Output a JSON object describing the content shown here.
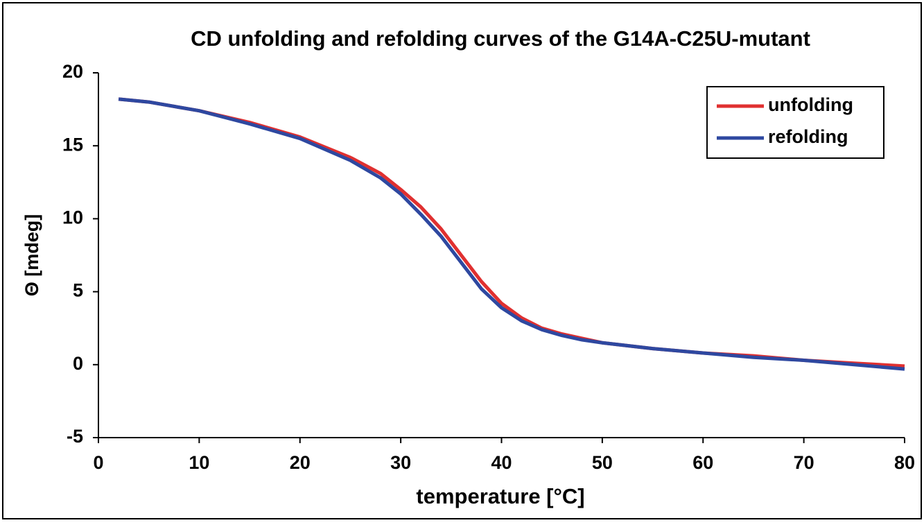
{
  "chart_data": {
    "type": "line",
    "title": "CD unfolding and refolding curves of the G14A-C25U-mutant",
    "x_label": "temperature [°C]",
    "y_label": "Θ [mdeg]",
    "x": [
      2,
      5,
      10,
      15,
      20,
      25,
      28,
      30,
      32,
      34,
      36,
      38,
      40,
      42,
      44,
      46,
      48,
      50,
      55,
      60,
      65,
      70,
      75,
      80
    ],
    "series": [
      {
        "name": "unfolding",
        "color": "#e03030",
        "values": [
          18.2,
          18.0,
          17.4,
          16.6,
          15.6,
          14.2,
          13.1,
          12.0,
          10.8,
          9.3,
          7.5,
          5.7,
          4.2,
          3.2,
          2.5,
          2.1,
          1.8,
          1.5,
          1.1,
          0.8,
          0.6,
          0.3,
          0.1,
          -0.1
        ]
      },
      {
        "name": "refolding",
        "color": "#2e48a0",
        "values": [
          18.2,
          18.0,
          17.4,
          16.5,
          15.5,
          14.0,
          12.8,
          11.7,
          10.3,
          8.8,
          7.0,
          5.2,
          3.9,
          3.0,
          2.4,
          2.0,
          1.7,
          1.5,
          1.1,
          0.8,
          0.5,
          0.3,
          0.0,
          -0.3
        ]
      }
    ],
    "xlim": [
      0,
      80
    ],
    "xticks": [
      0,
      10,
      20,
      30,
      40,
      50,
      60,
      70,
      80
    ],
    "ylim": [
      -5,
      20
    ],
    "yticks": [
      -5,
      0,
      5,
      10,
      15,
      20
    ],
    "grid": false,
    "legend": "top-right"
  }
}
